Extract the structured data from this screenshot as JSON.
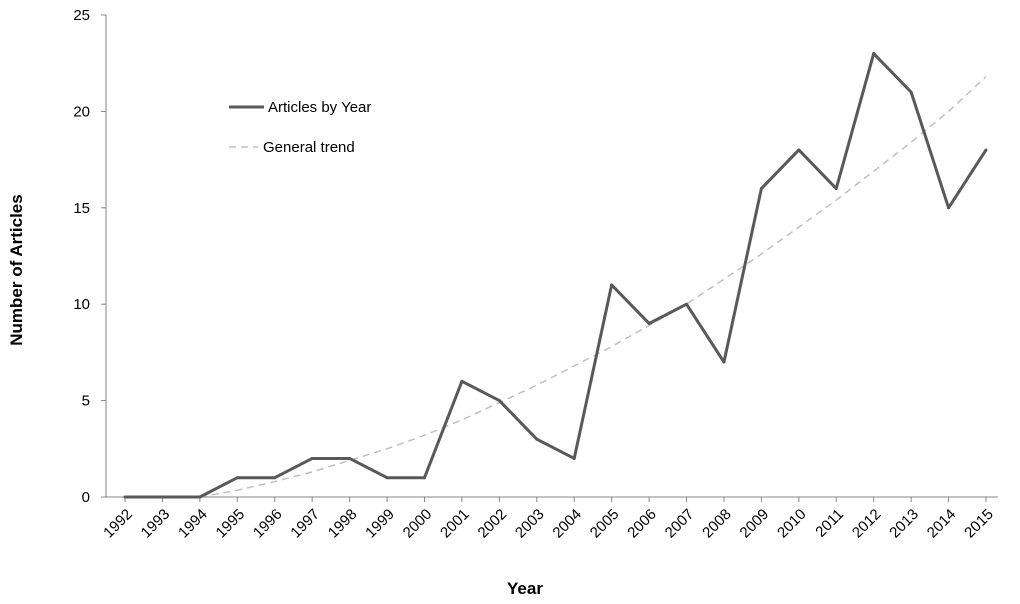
{
  "chart_data": {
    "type": "line",
    "title": "",
    "xlabel": "Year",
    "ylabel": "Number of Articles",
    "categories": [
      "1992",
      "1993",
      "1994",
      "1995",
      "1996",
      "1997",
      "1998",
      "1999",
      "2000",
      "2001",
      "2002",
      "2003",
      "2004",
      "2005",
      "2006",
      "2007",
      "2008",
      "2009",
      "2010",
      "2011",
      "2012",
      "2013",
      "2014",
      "2015"
    ],
    "ylim": [
      0,
      25
    ],
    "yticks": [
      0,
      5,
      10,
      15,
      20,
      25
    ],
    "grid": false,
    "legend_position": "upper-left-inside",
    "series": [
      {
        "name": "Articles by Year",
        "style": "solid",
        "color": "#595959",
        "values": [
          0,
          0,
          0,
          1,
          1,
          2,
          2,
          1,
          1,
          6,
          5,
          3,
          2,
          11,
          9,
          10,
          7,
          16,
          18,
          16,
          23,
          21,
          15,
          18
        ]
      },
      {
        "name": "General trend",
        "style": "dashed",
        "color": "#c0c0c0",
        "values": [
          null,
          null,
          0,
          0.35,
          0.8,
          1.3,
          1.9,
          2.5,
          3.2,
          4.0,
          4.9,
          5.8,
          6.8,
          7.8,
          8.9,
          10.0,
          11.3,
          12.6,
          14.0,
          15.4,
          16.9,
          18.4,
          20.0,
          21.8
        ]
      }
    ]
  }
}
